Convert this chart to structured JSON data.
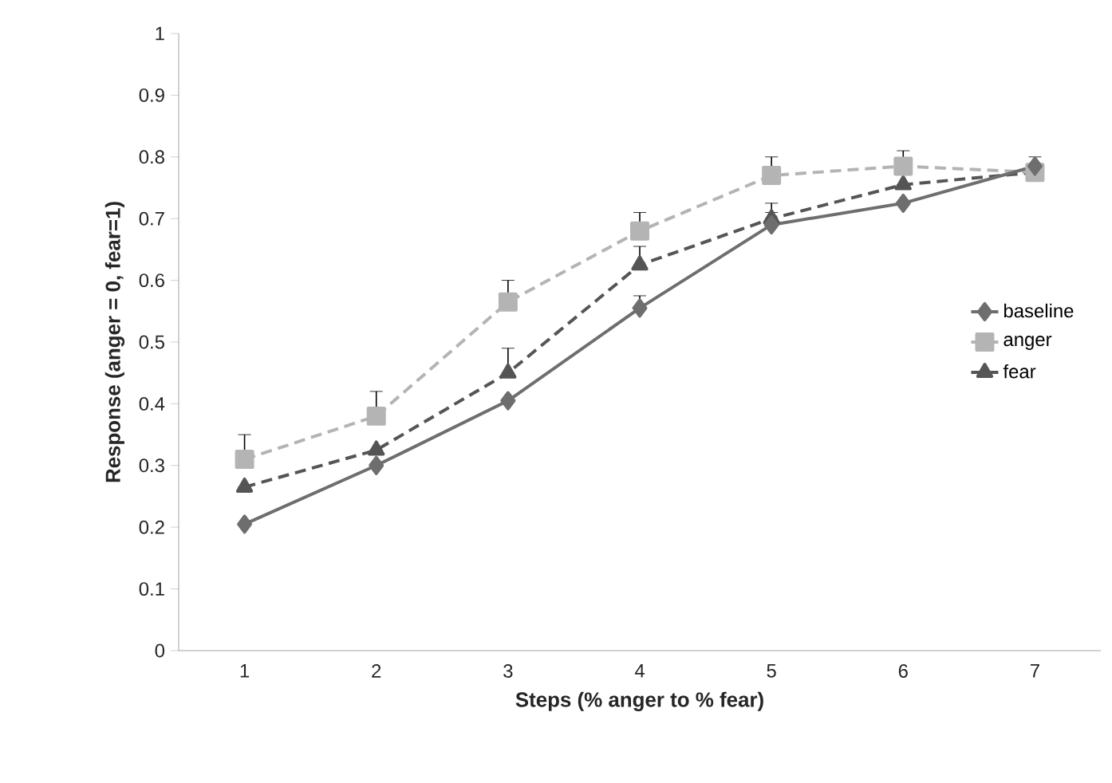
{
  "chart_data": {
    "type": "line",
    "xlabel": "Steps (% anger to % fear)",
    "ylabel": "Response (anger = 0, fear=1)",
    "categories": [
      "1",
      "2",
      "3",
      "4",
      "5",
      "6",
      "7"
    ],
    "ylim": [
      0,
      1
    ],
    "yticks": [
      0,
      0.1,
      0.2,
      0.3,
      0.4,
      0.5,
      0.6,
      0.7,
      0.8,
      0.9,
      1
    ],
    "grid": false,
    "legend": "right",
    "series": [
      {
        "name": "baseline",
        "color": "#6e6e6e",
        "marker": "diamond",
        "line_style": "solid",
        "values": [
          0.205,
          0.3,
          0.405,
          0.555,
          0.69,
          0.725,
          0.785
        ],
        "errors": [
          null,
          null,
          null,
          [
            0.555,
            0.575
          ],
          [
            0.69,
            0.71
          ],
          null,
          null
        ]
      },
      {
        "name": "anger",
        "color": "#b4b4b4",
        "marker": "square",
        "line_style": "dashed",
        "values": [
          0.31,
          0.38,
          0.565,
          0.68,
          0.77,
          0.785,
          0.775
        ],
        "errors": [
          [
            0.31,
            0.35
          ],
          [
            0.38,
            0.42
          ],
          [
            0.565,
            0.6
          ],
          [
            0.68,
            0.71
          ],
          [
            0.77,
            0.8
          ],
          [
            0.785,
            0.81
          ],
          [
            0.775,
            0.8
          ]
        ]
      },
      {
        "name": "fear",
        "color": "#555555",
        "marker": "triangle",
        "line_style": "dashed",
        "values": [
          0.265,
          0.325,
          0.45,
          0.625,
          0.7,
          0.755,
          0.775
        ],
        "errors": [
          null,
          null,
          [
            0.45,
            0.49
          ],
          [
            0.625,
            0.655
          ],
          [
            0.7,
            0.725
          ],
          null,
          null
        ]
      }
    ]
  }
}
